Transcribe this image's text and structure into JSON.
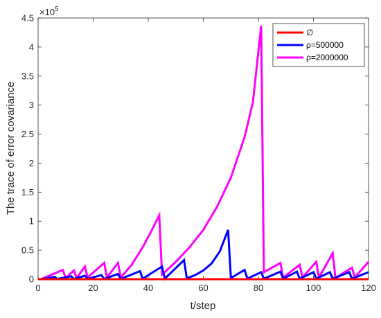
{
  "chart_data": {
    "type": "line",
    "title": "",
    "xlabel": "t/step",
    "ylabel": "The trace of error covariance",
    "y_exponent_label": "×10",
    "y_exponent_power": "5",
    "xlim": [
      0,
      120
    ],
    "ylim": [
      0,
      450000
    ],
    "x_ticks": [
      0,
      20,
      40,
      60,
      80,
      100,
      120
    ],
    "x_tick_labels": [
      "0",
      "20",
      "40",
      "60",
      "80",
      "100",
      "120"
    ],
    "y_ticks": [
      0,
      50000,
      100000,
      150000,
      200000,
      250000,
      300000,
      350000,
      400000,
      450000
    ],
    "y_tick_labels": [
      "0",
      "0.5",
      "1",
      "1.5",
      "2",
      "2.5",
      "3",
      "3.5",
      "4",
      "4.5"
    ],
    "grid": false,
    "legend_position": "top-right",
    "series": [
      {
        "name": "∅",
        "color": "#ff0000",
        "points": [
          [
            0,
            0
          ],
          [
            120,
            0
          ]
        ]
      },
      {
        "name": "ρ=500000",
        "color": "#0000ff",
        "points": [
          [
            1,
            0
          ],
          [
            6,
            4000
          ],
          [
            7,
            500
          ],
          [
            12,
            5000
          ],
          [
            13,
            500
          ],
          [
            17,
            6000
          ],
          [
            18,
            500
          ],
          [
            23,
            7000
          ],
          [
            24,
            500
          ],
          [
            29,
            9000
          ],
          [
            30,
            500
          ],
          [
            37,
            14000
          ],
          [
            38,
            800
          ],
          [
            45,
            22000
          ],
          [
            46,
            1000
          ],
          [
            53,
            33000
          ],
          [
            54,
            1500
          ],
          [
            57,
            7000
          ],
          [
            60,
            15000
          ],
          [
            63,
            27000
          ],
          [
            66,
            48000
          ],
          [
            69,
            85000
          ],
          [
            70,
            2000
          ],
          [
            75,
            16000
          ],
          [
            76,
            1000
          ],
          [
            81,
            12000
          ],
          [
            82,
            800
          ],
          [
            88,
            13000
          ],
          [
            89,
            800
          ],
          [
            94,
            13000
          ],
          [
            95,
            800
          ],
          [
            100,
            12000
          ],
          [
            101,
            800
          ],
          [
            106,
            12000
          ],
          [
            107,
            800
          ],
          [
            113,
            12000
          ],
          [
            114,
            800
          ],
          [
            120,
            12000
          ]
        ]
      },
      {
        "name": "ρ=2000000",
        "color": "#ff00ff",
        "points": [
          [
            1,
            0
          ],
          [
            5,
            8000
          ],
          [
            9,
            16000
          ],
          [
            10,
            2000
          ],
          [
            13,
            15000
          ],
          [
            14,
            2000
          ],
          [
            17,
            22000
          ],
          [
            18,
            3000
          ],
          [
            24,
            28000
          ],
          [
            25,
            3000
          ],
          [
            29,
            28000
          ],
          [
            30,
            3000
          ],
          [
            34,
            25000
          ],
          [
            38,
            55000
          ],
          [
            41,
            82000
          ],
          [
            44,
            110000
          ],
          [
            45,
            8000
          ],
          [
            50,
            30000
          ],
          [
            55,
            55000
          ],
          [
            60,
            85000
          ],
          [
            65,
            125000
          ],
          [
            70,
            175000
          ],
          [
            75,
            245000
          ],
          [
            78,
            305000
          ],
          [
            81,
            437000
          ],
          [
            82,
            12000
          ],
          [
            88,
            28000
          ],
          [
            89,
            3000
          ],
          [
            95,
            25000
          ],
          [
            96,
            3000
          ],
          [
            101,
            30000
          ],
          [
            102,
            3000
          ],
          [
            107,
            45000
          ],
          [
            108,
            2000
          ],
          [
            114,
            20000
          ],
          [
            115,
            3000
          ],
          [
            120,
            30000
          ]
        ]
      }
    ]
  }
}
